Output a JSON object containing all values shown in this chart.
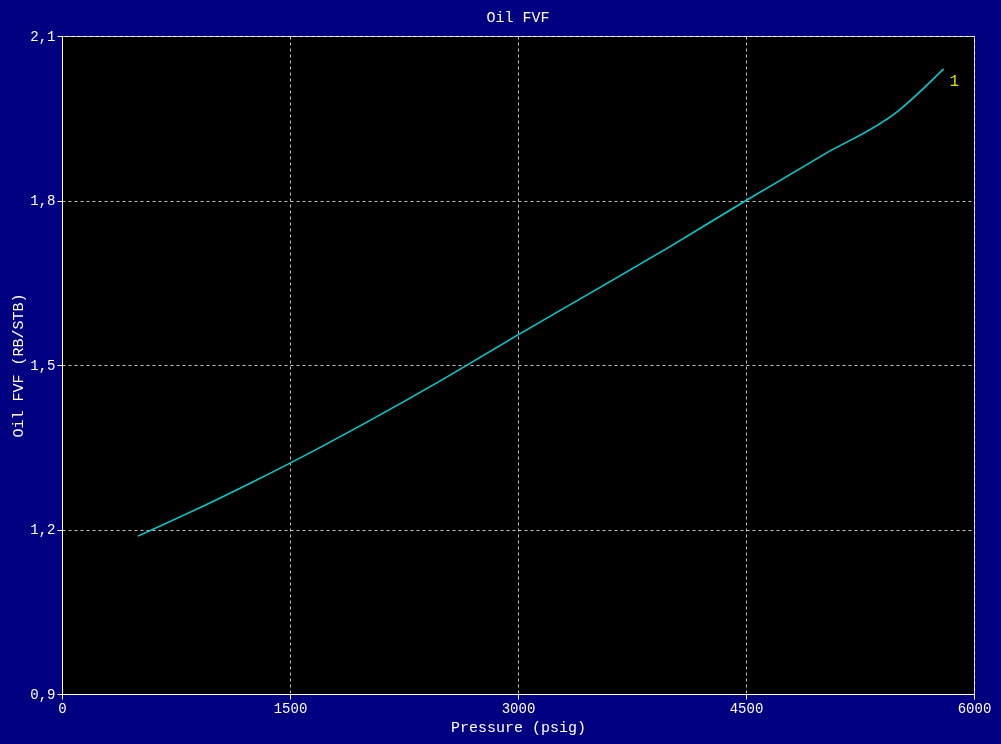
{
  "chart_data": {
    "type": "line",
    "title": "Oil FVF",
    "xlabel": "Pressure (psig)",
    "ylabel": "Oil FVF (RB/STB)",
    "x": [
      500,
      1000,
      1500,
      2000,
      2500,
      3000,
      3500,
      4000,
      4500,
      5000,
      5500,
      5800
    ],
    "series": [
      {
        "color": "#00d0d0",
        "values": [
          1.188,
          1.252,
          1.321,
          1.395,
          1.473,
          1.555,
          1.635,
          1.716,
          1.8,
          1.882,
          1.963,
          2.04
        ]
      }
    ],
    "xlim": [
      0,
      6000
    ],
    "xticks": [
      0,
      1500,
      3000,
      4500,
      6000
    ],
    "ylim": [
      0.9,
      2.1
    ],
    "yticks": [
      {
        "value": 0.9,
        "label": "0,9"
      },
      {
        "value": 1.2,
        "label": "1,2"
      },
      {
        "value": 1.5,
        "label": "1,5"
      },
      {
        "value": 1.8,
        "label": "1,8"
      },
      {
        "value": 2.1,
        "label": "2,1"
      }
    ],
    "grid": true,
    "line_style": "solid",
    "marker": "none",
    "annotations": [
      "1"
    ]
  }
}
